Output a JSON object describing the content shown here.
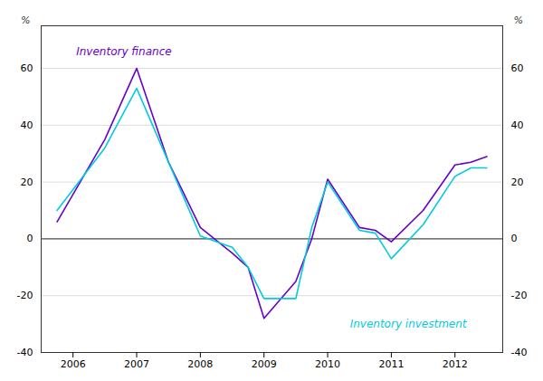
{
  "chart_data": {
    "type": "line",
    "x": [
      2005.75,
      2006.5,
      2007.0,
      2007.5,
      2008.0,
      2008.5,
      2008.75,
      2009.0,
      2009.5,
      2009.75,
      2010.0,
      2010.5,
      2010.75,
      2011.0,
      2011.5,
      2012.0,
      2012.25,
      2012.5
    ],
    "series": [
      {
        "name": "Inventory finance",
        "color": "#6600CC",
        "values": [
          6,
          35,
          60,
          27,
          4,
          -5,
          -10,
          -28,
          -15,
          0,
          21,
          4,
          3,
          -1,
          10,
          26,
          27,
          29
        ]
      },
      {
        "name": "Inventory investment",
        "color": "#00CCDD",
        "values": [
          10,
          32,
          53,
          27,
          1,
          -3,
          -10,
          -21,
          -21,
          4,
          20,
          3,
          2,
          -7,
          5,
          22,
          25,
          25
        ]
      }
    ],
    "xlim": [
      2005.5,
      2012.75
    ],
    "xticks": [
      2006,
      2007,
      2008,
      2009,
      2010,
      2011,
      2012
    ],
    "ylim": [
      -40,
      75
    ],
    "yticks": [
      -40,
      -20,
      0,
      20,
      40,
      60
    ],
    "ylabel": "%",
    "y2lim": [
      -40,
      75
    ],
    "y2ticks": [
      -40,
      -20,
      0,
      20,
      40,
      60
    ],
    "y2label": "%",
    "grid": true,
    "annotations": [
      {
        "text": "Inventory finance",
        "x": 2006.05,
        "y": 66,
        "color": "#6600CC"
      },
      {
        "text": "Inventory investment",
        "x": 2010.35,
        "y": -30,
        "color": "#00CCDD"
      }
    ]
  }
}
